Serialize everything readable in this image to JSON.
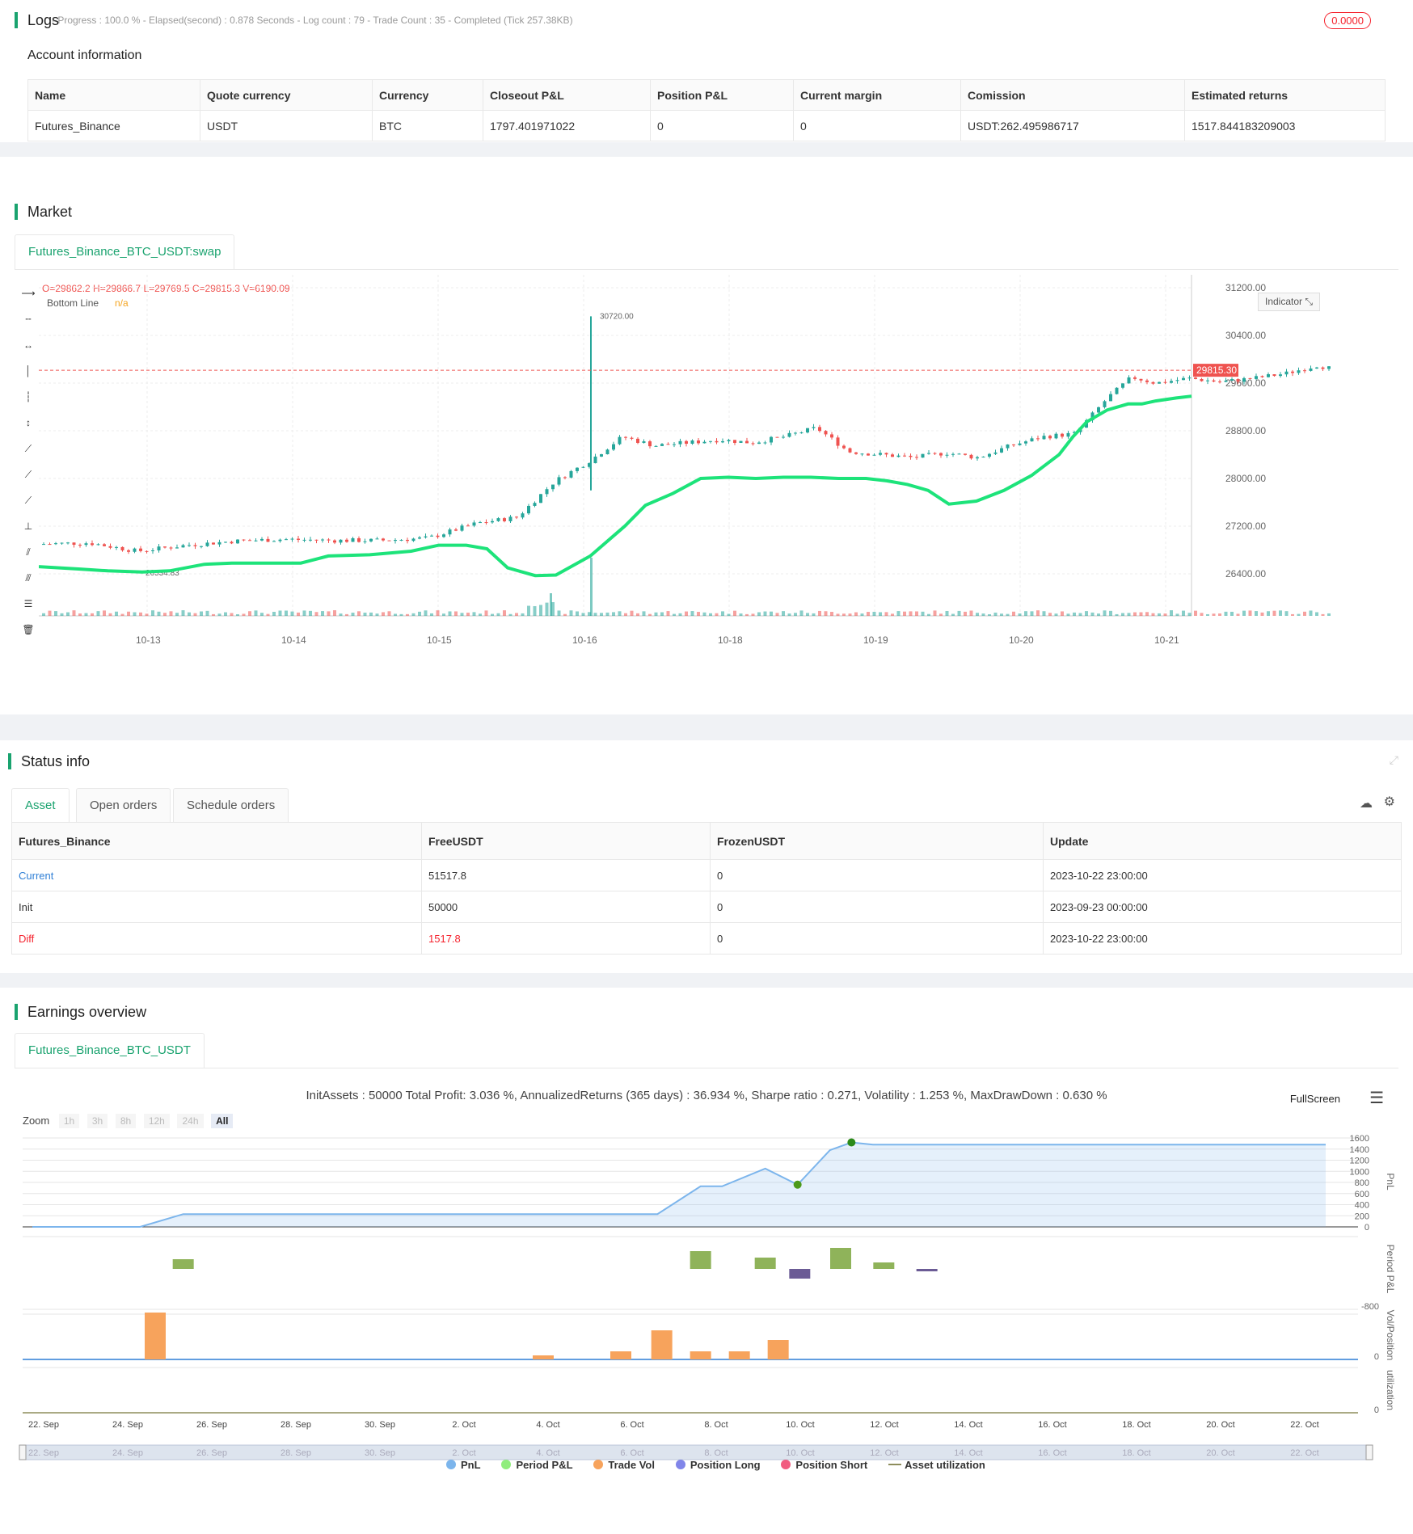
{
  "logs": {
    "title": "Logs",
    "summary": "- Progress : 100.0 % - Elapsed(second) : 0.878  Seconds - Log count : 79 - Trade Count : 35 - Completed (Tick 257.38KB)",
    "badge": "0.0000"
  },
  "account": {
    "title": "Account information",
    "headers": [
      "Name",
      "Quote currency",
      "Currency",
      "Closeout P&L",
      "Position P&L",
      "Current margin",
      "Comission",
      "Estimated returns"
    ],
    "row": [
      "Futures_Binance",
      "USDT",
      "BTC",
      "1797.401971022",
      "0",
      "0",
      "USDT:262.495986717",
      "1517.844183209003"
    ]
  },
  "market": {
    "title": "Market",
    "tab": "Futures_Binance_BTC_USDT:swap",
    "ohlc": "O=29862.2 H=29866.7 L=29769.5 C=29815.3 V=6190.09",
    "indicator_name": "Bottom Line",
    "indicator_value": "n/a",
    "indicator_button": "Indicator",
    "price_tag": "29815.30",
    "peak_label": "30720.00",
    "low_label": "26534.83",
    "y_ticks": [
      "31200.00",
      "30400.00",
      "29600.00",
      "28800.00",
      "28000.00",
      "27200.00",
      "26400.00"
    ],
    "x_ticks": [
      "10-13",
      "10-14",
      "10-15",
      "10-16",
      "10-18",
      "10-19",
      "10-20",
      "10-21"
    ],
    "colors": {
      "up": "#26a69a",
      "down": "#ef5350",
      "line": "#1de37a"
    }
  },
  "status": {
    "title": "Status info",
    "tabs": [
      "Asset",
      "Open orders",
      "Schedule orders"
    ],
    "headers": [
      "Futures_Binance",
      "FreeUSDT",
      "FrozenUSDT",
      "Update"
    ],
    "rows": [
      [
        "Current",
        "51517.8",
        "0",
        "2023-10-22 23:00:00"
      ],
      [
        "Init",
        "50000",
        "0",
        "2023-09-23 00:00:00"
      ],
      [
        "Diff",
        "1517.8",
        "0",
        "2023-10-22 23:00:00"
      ]
    ]
  },
  "earnings": {
    "title": "Earnings overview",
    "tab": "Futures_Binance_BTC_USDT",
    "summary": "InitAssets : 50000 Total Profit: 3.036 %, AnnualizedReturns (365 days) : 36.934 %, Sharpe ratio : 0.271, Volatility : 1.253 %, MaxDrawDown : 0.630 %",
    "fullscreen": "FullScreen",
    "zoom_label": "Zoom",
    "zoom_buttons": [
      "1h",
      "3h",
      "8h",
      "12h",
      "24h",
      "All"
    ],
    "pnl_ticks": [
      "1600",
      "1400",
      "1200",
      "1000",
      "800",
      "600",
      "400",
      "200",
      "0"
    ],
    "period_tick": "-800",
    "vol_tick": "0",
    "util_tick": "0",
    "panel_labels": [
      "PnL",
      "Period P&L",
      "Vol/Position",
      "utilization"
    ],
    "x_ticks": [
      "22. Sep",
      "24. Sep",
      "26. Sep",
      "28. Sep",
      "30. Sep",
      "2. Oct",
      "4. Oct",
      "6. Oct",
      "8. Oct",
      "10. Oct",
      "12. Oct",
      "14. Oct",
      "16. Oct",
      "18. Oct",
      "20. Oct",
      "22. Oct"
    ],
    "legend": [
      {
        "label": "PnL",
        "color": "#7cb5ec"
      },
      {
        "label": "Period P&L",
        "color": "#90ed7d"
      },
      {
        "label": "Trade Vol",
        "color": "#f7a35c"
      },
      {
        "label": "Position Long",
        "color": "#8085e9"
      },
      {
        "label": "Position Short",
        "color": "#f15c80"
      },
      {
        "label": "Asset utilization",
        "color": "#8d8d5c"
      }
    ],
    "chart_data": {
      "type": "line",
      "x": [
        "22. Sep",
        "24. Sep",
        "25. Sep",
        "26. Sep",
        "28. Sep",
        "30. Sep",
        "2. Oct",
        "4. Oct",
        "6. Oct",
        "7. Oct",
        "8. Oct",
        "9. Oct",
        "10. Oct",
        "11. Oct",
        "12. Oct",
        "13. Oct",
        "14. Oct",
        "16. Oct",
        "18. Oct",
        "20. Oct",
        "22. Oct"
      ],
      "series": [
        {
          "name": "PnL",
          "values": [
            0,
            0,
            0,
            230,
            230,
            230,
            230,
            230,
            230,
            730,
            730,
            1050,
            760,
            1380,
            1520,
            1480,
            1480,
            1480,
            1480,
            1480,
            1480
          ]
        }
      ],
      "ylim": [
        0,
        1600
      ]
    }
  }
}
